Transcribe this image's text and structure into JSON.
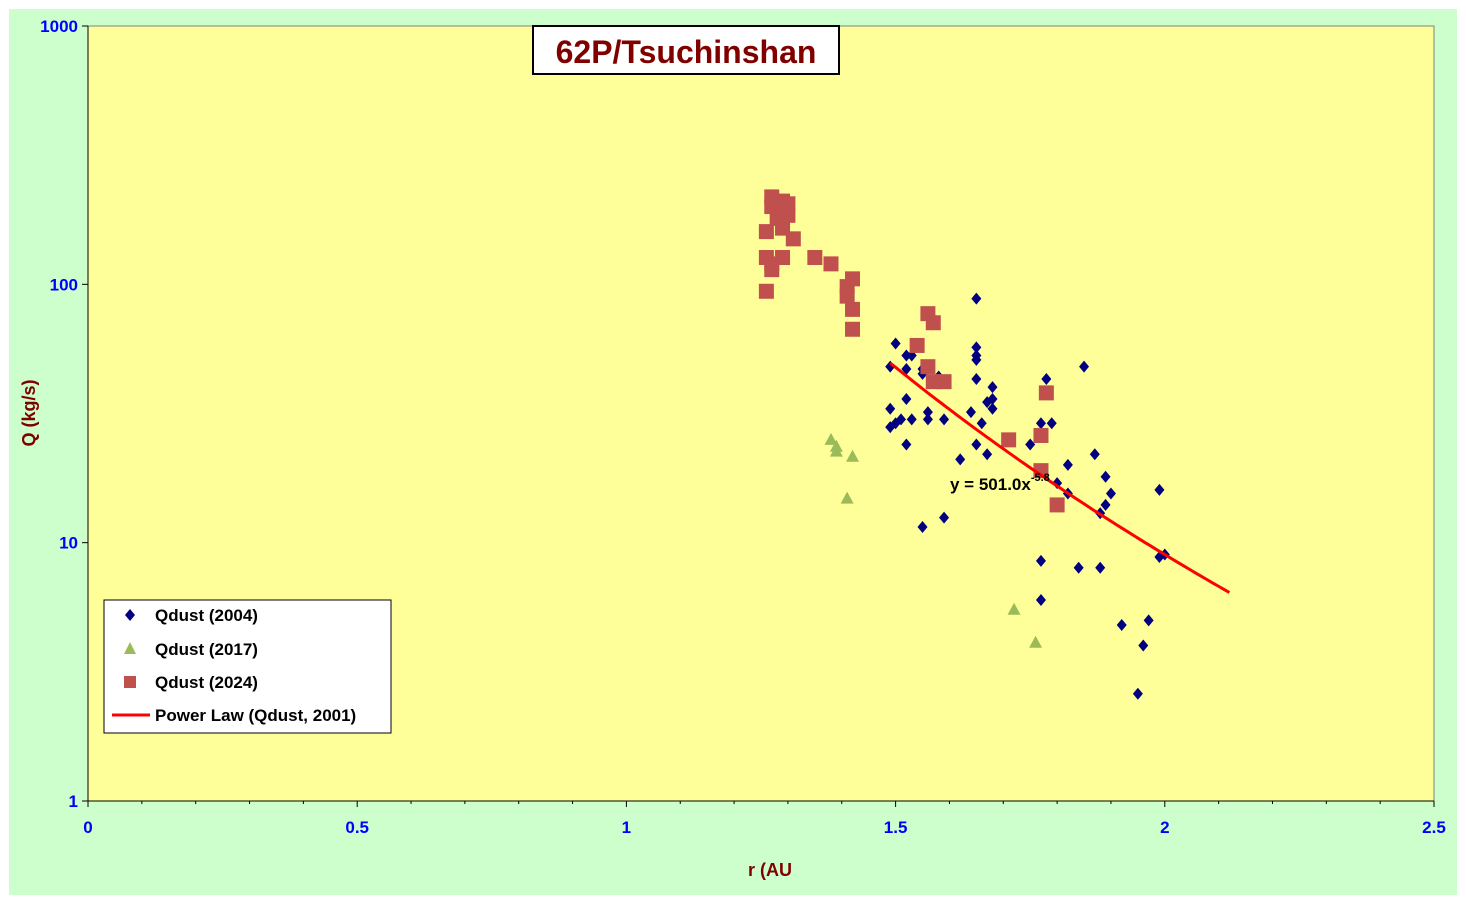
{
  "chart_data": {
    "type": "scatter",
    "title": "62P/Tsuchinshan",
    "xlabel": "r (AU",
    "ylabel": "Q (kg/s)",
    "xlim": [
      0,
      2.5
    ],
    "ylim": [
      1,
      1000
    ],
    "y_scale": "log",
    "x_ticks": [
      "0",
      "0.5",
      "1",
      "1.5",
      "2",
      "2.5"
    ],
    "x_tick_values": [
      0,
      0.5,
      1,
      1.5,
      2,
      2.5
    ],
    "y_ticks": [
      "1",
      "10",
      "100",
      "1000"
    ],
    "y_tick_values": [
      1,
      10,
      100,
      1000
    ],
    "legend_position": "bottom-left",
    "annotation": {
      "text": "y = 501.0x",
      "exponent": "-5.8"
    },
    "colors": {
      "figure_bg": "#ccffcc",
      "plot_bg": "#ffff99",
      "title_text": "#800000",
      "axis_label": "#800000",
      "tick_label": "#0000ff"
    },
    "series": [
      {
        "name": "Qdust (2004)",
        "marker": "diamond",
        "color": "#000080",
        "points": [
          [
            1.49,
            48
          ],
          [
            1.5,
            59
          ],
          [
            1.52,
            53
          ],
          [
            1.53,
            53
          ],
          [
            1.52,
            47
          ],
          [
            1.55,
            47
          ],
          [
            1.55,
            45
          ],
          [
            1.58,
            44
          ],
          [
            1.49,
            33
          ],
          [
            1.49,
            28
          ],
          [
            1.5,
            29
          ],
          [
            1.51,
            30
          ],
          [
            1.53,
            30
          ],
          [
            1.52,
            36
          ],
          [
            1.56,
            30
          ],
          [
            1.56,
            32
          ],
          [
            1.59,
            30
          ],
          [
            1.52,
            24
          ],
          [
            1.55,
            11.5
          ],
          [
            1.59,
            12.5
          ],
          [
            1.62,
            21
          ],
          [
            1.64,
            32
          ],
          [
            1.65,
            24
          ],
          [
            1.65,
            88
          ],
          [
            1.65,
            57
          ],
          [
            1.65,
            51
          ],
          [
            1.65,
            53
          ],
          [
            1.65,
            43
          ],
          [
            1.66,
            29
          ],
          [
            1.67,
            22
          ],
          [
            1.67,
            35
          ],
          [
            1.68,
            40
          ],
          [
            1.68,
            33
          ],
          [
            1.68,
            36
          ],
          [
            1.75,
            24
          ],
          [
            1.77,
            29
          ],
          [
            1.78,
            43
          ],
          [
            1.79,
            29
          ],
          [
            1.77,
            8.5
          ],
          [
            1.77,
            6
          ],
          [
            1.8,
            14
          ],
          [
            1.8,
            17
          ],
          [
            1.82,
            15.5
          ],
          [
            1.82,
            20
          ],
          [
            1.84,
            8
          ],
          [
            1.85,
            48
          ],
          [
            1.87,
            22
          ],
          [
            1.88,
            13
          ],
          [
            1.88,
            8
          ],
          [
            1.89,
            14
          ],
          [
            1.89,
            18
          ],
          [
            1.9,
            15.5
          ],
          [
            1.92,
            4.8
          ],
          [
            1.95,
            2.6
          ],
          [
            1.96,
            4
          ],
          [
            1.97,
            5
          ],
          [
            1.99,
            8.8
          ],
          [
            2.0,
            9
          ],
          [
            1.99,
            16
          ]
        ]
      },
      {
        "name": "Qdust (2017)",
        "marker": "triangle",
        "color": "#9bbb59",
        "points": [
          [
            1.38,
            25
          ],
          [
            1.39,
            22.5
          ],
          [
            1.39,
            23.5
          ],
          [
            1.41,
            14.8
          ],
          [
            1.42,
            21.5
          ],
          [
            1.72,
            5.5
          ],
          [
            1.76,
            4.1
          ]
        ]
      },
      {
        "name": "Qdust (2024)",
        "marker": "square",
        "color": "#c0504d",
        "points": [
          [
            1.26,
            160
          ],
          [
            1.26,
            127
          ],
          [
            1.26,
            94
          ],
          [
            1.27,
            114
          ],
          [
            1.27,
            120
          ],
          [
            1.27,
            200
          ],
          [
            1.27,
            218
          ],
          [
            1.28,
            205
          ],
          [
            1.28,
            180
          ],
          [
            1.29,
            210
          ],
          [
            1.29,
            165
          ],
          [
            1.29,
            127
          ],
          [
            1.3,
            185
          ],
          [
            1.3,
            205
          ],
          [
            1.31,
            150
          ],
          [
            1.35,
            127
          ],
          [
            1.38,
            120
          ],
          [
            1.41,
            98
          ],
          [
            1.41,
            90
          ],
          [
            1.42,
            105
          ],
          [
            1.42,
            80
          ],
          [
            1.42,
            67
          ],
          [
            1.54,
            58
          ],
          [
            1.56,
            77
          ],
          [
            1.56,
            48
          ],
          [
            1.57,
            71
          ],
          [
            1.57,
            42
          ],
          [
            1.59,
            42
          ],
          [
            1.71,
            25
          ],
          [
            1.77,
            26
          ],
          [
            1.78,
            38
          ],
          [
            1.77,
            19
          ],
          [
            1.8,
            14
          ]
        ]
      },
      {
        "name": "Power Law (Qdust, 2001)",
        "type": "line",
        "color": "#ff0000",
        "coefficient": 501.0,
        "exponent": -5.8,
        "x_range": [
          1.49,
          2.12
        ]
      }
    ]
  }
}
